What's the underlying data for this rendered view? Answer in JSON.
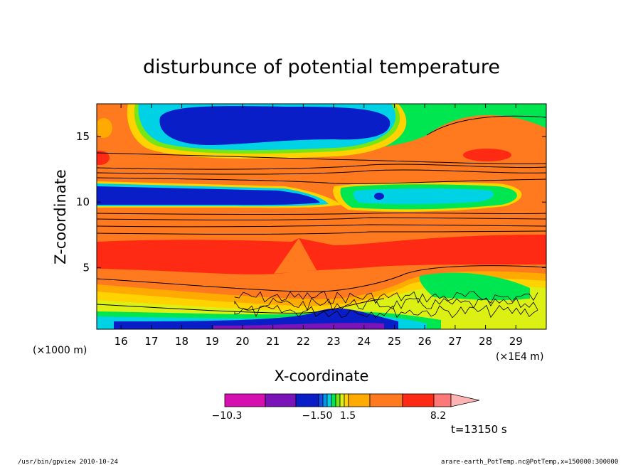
{
  "chart_data": {
    "type": "heatmap",
    "title": "disturbunce of potential temperature",
    "xlabel": "X-coordinate",
    "ylabel": "Z-coordinate",
    "x_unit_left": "(×1000 m)",
    "x_unit_right": "(×1E4 m)",
    "x_ticks": [
      16,
      17,
      18,
      19,
      20,
      21,
      22,
      23,
      24,
      25,
      26,
      27,
      28,
      29
    ],
    "y_ticks": [
      5,
      10,
      15
    ],
    "xlim": [
      15.2,
      30.0
    ],
    "ylim": [
      0.3,
      17.5
    ],
    "colorbar": {
      "colors": [
        "#d60fb0",
        "#7a14b8",
        "#0a1ec8",
        "#1450e6",
        "#0096f0",
        "#00d2e6",
        "#00e650",
        "#78e614",
        "#dcf014",
        "#ffd200",
        "#ffaa00",
        "#ff7a1e",
        "#ff2a14",
        "#ff7878",
        "#ffb4b4"
      ],
      "labels": [
        "−10.3",
        "−1.50",
        "1.5",
        "8.2"
      ],
      "extend": "max"
    },
    "regions": [
      {
        "band": "surface",
        "z_range": [
          0.3,
          1.2
        ],
        "value_level": "negative",
        "color": "#0a1ec8"
      },
      {
        "band": "lower",
        "z_range": [
          1.2,
          4.0
        ],
        "value_level": "mixed",
        "color": "#ffd200"
      },
      {
        "band": "middle",
        "z_range": [
          4.0,
          7.5
        ],
        "value_level": "positive",
        "color": "#ff2a14"
      },
      {
        "band": "layer",
        "z_range": [
          10.0,
          11.5
        ],
        "value_level": "negative",
        "color": "#0a1ec8"
      },
      {
        "band": "upper",
        "z_range": [
          14.0,
          17.5
        ],
        "value_level": "negative",
        "color": "#0a1ec8"
      }
    ]
  },
  "annotations": {
    "time": "t=13150 s",
    "footer_left": "/usr/bin/gpview  2010-10-24",
    "footer_right": "arare-earth_PotTemp.nc@PotTemp,x=150000:300000"
  }
}
